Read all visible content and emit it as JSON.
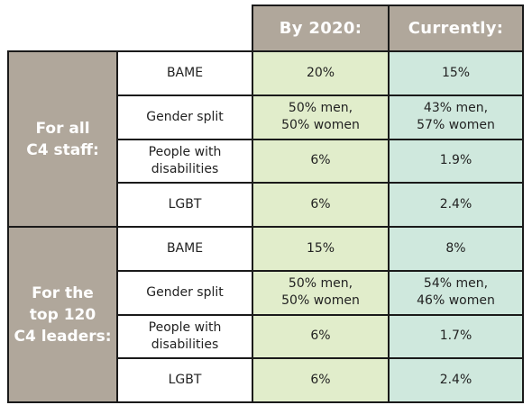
{
  "table": {
    "headers": {
      "target": "By 2020:",
      "current": "Currently:"
    },
    "groups": [
      {
        "title_lines": [
          "For all",
          "C4 staff:"
        ],
        "rows": [
          {
            "label_lines": [
              "BAME"
            ],
            "target_lines": [
              "20%"
            ],
            "current_lines": [
              "15%"
            ]
          },
          {
            "label_lines": [
              "Gender split"
            ],
            "target_lines": [
              "50% men,",
              "50% women"
            ],
            "current_lines": [
              "43% men,",
              "57% women"
            ]
          },
          {
            "label_lines": [
              "People with",
              "disabilities"
            ],
            "target_lines": [
              "6%"
            ],
            "current_lines": [
              "1.9%"
            ]
          },
          {
            "label_lines": [
              "LGBT"
            ],
            "target_lines": [
              "6%"
            ],
            "current_lines": [
              "2.4%"
            ]
          }
        ]
      },
      {
        "title_lines": [
          "For the",
          "top 120",
          "C4 leaders:"
        ],
        "rows": [
          {
            "label_lines": [
              "BAME"
            ],
            "target_lines": [
              "15%"
            ],
            "current_lines": [
              "8%"
            ]
          },
          {
            "label_lines": [
              "Gender split"
            ],
            "target_lines": [
              "50% men,",
              "50% women"
            ],
            "current_lines": [
              "54% men,",
              "46% women"
            ]
          },
          {
            "label_lines": [
              "People with",
              "disabilities"
            ],
            "target_lines": [
              "6%"
            ],
            "current_lines": [
              "1.7%"
            ]
          },
          {
            "label_lines": [
              "LGBT"
            ],
            "target_lines": [
              "6%"
            ],
            "current_lines": [
              "2.4%"
            ]
          }
        ]
      }
    ]
  }
}
